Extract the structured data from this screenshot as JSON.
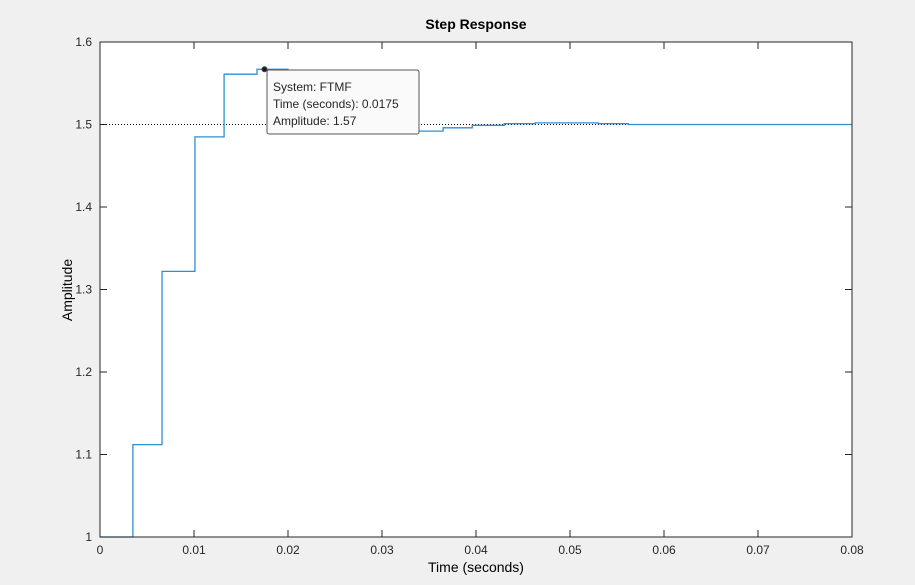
{
  "chart_data": {
    "type": "line",
    "style": "stairs",
    "title": "Step Response",
    "xlabel": "Time (seconds)",
    "ylabel": "Amplitude",
    "xlim": [
      0,
      0.08
    ],
    "ylim": [
      1,
      1.6
    ],
    "xticks": [
      0,
      0.01,
      0.02,
      0.03,
      0.04,
      0.05,
      0.06,
      0.07,
      0.08
    ],
    "yticks": [
      1,
      1.1,
      1.2,
      1.3,
      1.4,
      1.5,
      1.6
    ],
    "xtick_labels": [
      "0",
      "0.01",
      "0.02",
      "0.03",
      "0.04",
      "0.05",
      "0.06",
      "0.07",
      "0.08"
    ],
    "ytick_labels": [
      "1",
      "1.1",
      "1.2",
      "1.3",
      "1.4",
      "1.5",
      "1.6"
    ],
    "reference_value": 1.5,
    "series": [
      {
        "name": "FTMF",
        "color": "#2f8fd0",
        "x": [
          0,
          0.0035,
          0.0066,
          0.0101,
          0.0132,
          0.0167,
          0.02,
          0.0234,
          0.0266,
          0.03,
          0.0334,
          0.0365,
          0.0396,
          0.043,
          0.0463,
          0.0497,
          0.053,
          0.0562,
          0.0597,
          0.08
        ],
        "y": [
          1.0,
          1.112,
          1.322,
          1.485,
          1.561,
          1.567,
          1.552,
          1.531,
          1.511,
          1.5,
          1.492,
          1.496,
          1.499,
          1.501,
          1.502,
          1.502,
          1.501,
          1.5,
          1.5,
          1.5
        ]
      }
    ],
    "datatip": {
      "x": 0.0175,
      "y": 1.567,
      "lines": [
        "System: FTMF",
        "Time (seconds): 0.0175",
        "Amplitude: 1.57"
      ]
    }
  },
  "colors": {
    "background": "#f0f0f0",
    "axes": "#ffffff",
    "axis_line": "#262626",
    "line": "#2f8fd0",
    "reference": "#000000"
  }
}
